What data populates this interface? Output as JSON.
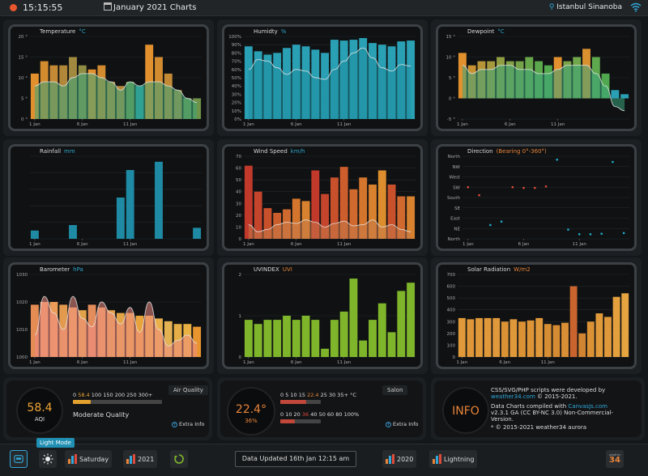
{
  "header": {
    "time": "15:15:55",
    "title": "January 2021 Charts",
    "location": "Istanbul Sinanoba"
  },
  "panels": [
    {
      "title": "Temperature",
      "unit": "°C",
      "unit_color": "blue",
      "yticks": [
        "20 °",
        "15 °",
        "10 °",
        "5 °",
        "0 °"
      ],
      "ymax": 20,
      "xticks": [
        {
          "label": "1 Jan",
          "i": 0
        },
        {
          "label": "6 Jan",
          "i": 5
        },
        {
          "label": "11 Jan",
          "i": 10
        }
      ],
      "bars": [
        11,
        14,
        13,
        13,
        15,
        13,
        12,
        13,
        9,
        8,
        9,
        8,
        18,
        15,
        11,
        7,
        5,
        5
      ],
      "bar_colors": [
        "#e2902e",
        "#d38b2f",
        "#c38935",
        "#b1873a",
        "#a18940",
        "#8f8c43",
        "#e2902e",
        "#d38b2f",
        "#c38935",
        "#b1873a",
        "#6f9348",
        "#1f9ab2",
        "#e2902e",
        "#d38b2f",
        "#c38935",
        "#b1873a",
        "#6f9348",
        "#6f9348"
      ],
      "line": [
        8,
        9,
        9,
        8,
        10,
        11,
        11,
        10,
        9,
        7,
        9,
        8,
        9,
        9,
        8,
        7,
        5,
        4
      ],
      "line_fill": "#3ca67b"
    },
    {
      "title": "Humidty",
      "unit": "%",
      "unit_color": "blue",
      "yticks": [
        "100%",
        "90%",
        "80%",
        "70%",
        "60%",
        "50%",
        "40%",
        "30%",
        "20%",
        "10%",
        "0%"
      ],
      "ymax": 100,
      "xticks": [
        {
          "label": "1 Jan",
          "i": 0
        },
        {
          "label": "6 Jan",
          "i": 5
        },
        {
          "label": "11 Jan",
          "i": 10
        }
      ],
      "bars": [
        88,
        82,
        78,
        80,
        86,
        90,
        88,
        84,
        80,
        96,
        95,
        96,
        98,
        92,
        90,
        88,
        94,
        95
      ],
      "bar_colors": [
        "#2aa0b4"
      ],
      "line": [
        60,
        72,
        70,
        62,
        54,
        60,
        58,
        50,
        48,
        60,
        70,
        80,
        86,
        74,
        62,
        58,
        66,
        64
      ],
      "line_fill": "#1e8fa0"
    },
    {
      "title": "Dewpoint",
      "unit": "°C",
      "unit_color": "blue",
      "yticks": [
        "15 °",
        "10 °",
        "5 °",
        "0 °",
        "-5 °"
      ],
      "ymax": 15,
      "ymin": -5,
      "xticks": [
        {
          "label": "1 Jan",
          "i": 0
        },
        {
          "label": "6 Jan",
          "i": 5
        },
        {
          "label": "11 Jan",
          "i": 10
        }
      ],
      "bars": [
        11,
        8,
        9,
        9,
        10,
        9,
        9,
        10,
        9,
        8,
        10,
        9,
        10,
        12,
        10,
        6,
        2,
        1
      ],
      "bar_colors": [
        "#e2902e",
        "#c89132",
        "#b59538",
        "#a5993d",
        "#909d42",
        "#82a046",
        "#74a349",
        "#68a64b",
        "#5ca84c",
        "#53a94e",
        "#e2902e",
        "#7ba347",
        "#6fa74a",
        "#d9902f",
        "#5ea94e",
        "#4fa84f",
        "#2aa0b4",
        "#2aa0b4"
      ],
      "line": [
        8,
        6,
        7,
        7,
        8,
        8,
        7,
        7,
        6,
        6,
        7,
        8,
        8,
        8,
        6,
        3,
        -2,
        -3
      ],
      "line_fill": "#3ca67b"
    },
    {
      "title": "Rainfall",
      "unit": "mm",
      "unit_color": "blue",
      "yticks": [],
      "ymax": 30,
      "xticks": [
        {
          "label": "1 Jan",
          "i": 0
        },
        {
          "label": "6 Jan",
          "i": 5
        },
        {
          "label": "11 Jan",
          "i": 10
        }
      ],
      "bars": [
        3,
        0,
        0,
        0,
        5,
        0,
        0,
        0,
        0,
        15,
        25,
        0,
        0,
        28,
        0,
        0,
        0,
        4
      ],
      "bar_colors": [
        "#1f8aa3"
      ],
      "line": []
    },
    {
      "title": "Wind Speed",
      "unit": "km/h",
      "unit_color": "blue",
      "yticks": [
        "70",
        "60",
        "50",
        "40",
        "30",
        "20",
        "10",
        "0"
      ],
      "ymax": 70,
      "xticks": [
        {
          "label": "1 Jan",
          "i": 0
        },
        {
          "label": "6 Jan",
          "i": 5
        },
        {
          "label": "11 Jan",
          "i": 10
        }
      ],
      "bars": [
        62,
        40,
        26,
        22,
        25,
        34,
        32,
        58,
        38,
        52,
        61,
        42,
        52,
        46,
        58,
        46,
        36,
        36
      ],
      "bar_colors": [
        "#c0392b",
        "#c4452b",
        "#c8512c",
        "#cc5d2c",
        "#d0692d",
        "#d4752d",
        "#d8812e",
        "#c0392b",
        "#c4452b",
        "#c8512c",
        "#cc5d2c",
        "#d0692d",
        "#d4752d",
        "#d8812e",
        "#dc8d2e",
        "#c8512c",
        "#d0692d",
        "#d8812e"
      ],
      "line": [
        12,
        6,
        8,
        12,
        14,
        13,
        16,
        14,
        10,
        13,
        15,
        11,
        12,
        16,
        10,
        12,
        8,
        6
      ],
      "line_fill": "#c87a4b"
    },
    {
      "title": "Direction",
      "unit": "(Bearing 0°-360°)",
      "unit_color": "orange",
      "yticks": [
        "North",
        "NW",
        "West",
        "SW",
        "South",
        "SE",
        "East",
        "NE",
        "North"
      ],
      "xticks": [
        {
          "label": "1 Jan",
          "i": 0
        },
        {
          "label": "6 Jan",
          "i": 5
        },
        {
          "label": "11 Jan",
          "i": 10
        }
      ],
      "points": [
        [
          0,
          225,
          "#e04a3a"
        ],
        [
          1,
          190,
          "#e04a3a"
        ],
        [
          2,
          60,
          "#1fa9c3"
        ],
        [
          3,
          75,
          "#1fa9c3"
        ],
        [
          4,
          225,
          "#e04a3a"
        ],
        [
          5,
          222,
          "#e04a3a"
        ],
        [
          6,
          222,
          "#e04a3a"
        ],
        [
          7,
          228,
          "#e04a3a"
        ],
        [
          8,
          345,
          "#1fa9c3"
        ],
        [
          9,
          40,
          "#1fa9c3"
        ],
        [
          10,
          20,
          "#1fa9c3"
        ],
        [
          11,
          20,
          "#1fa9c3"
        ],
        [
          12,
          22,
          "#1fa9c3"
        ],
        [
          13,
          335,
          "#1fa9c3"
        ],
        [
          14,
          25,
          "#1fa9c3"
        ]
      ]
    },
    {
      "title": "Barometer",
      "unit": "hPa",
      "unit_color": "blue",
      "yticks": [
        "1030",
        "1020",
        "1010",
        "1000"
      ],
      "ymax": 1030,
      "ymin": 1000,
      "xticks": [
        {
          "label": "1 Jan",
          "i": 0
        },
        {
          "label": "6 Jan",
          "i": 5
        },
        {
          "label": "11 Jan",
          "i": 10
        }
      ],
      "bars": [
        1019,
        1020,
        1020,
        1019,
        1018,
        1017,
        1019,
        1018,
        1017,
        1016,
        1016,
        1015,
        1015,
        1014,
        1013,
        1012,
        1012,
        1011
      ],
      "bar_colors": [
        "#e58b54",
        "#e8975d",
        "#eb9c58",
        "#e29a4e",
        "#e6a353",
        "#e2a24a",
        "#e48d5c",
        "#e49755",
        "#e29f4c",
        "#e2a446",
        "#e4a342",
        "#e8a33c",
        "#e6a940",
        "#eab04b",
        "#e4b153",
        "#e6ae46",
        "#e9b144",
        "#e8952f"
      ],
      "line": [
        1008,
        1022,
        1016,
        1010,
        1022,
        1014,
        1011,
        1020,
        1016,
        1012,
        1018,
        1009,
        1020,
        1010,
        1004,
        1006,
        1008,
        1005
      ],
      "line_fill": "#ef8d84"
    },
    {
      "title": "UVINDEX",
      "unit": "UVI",
      "unit_color": "orange",
      "yticks": [
        "2",
        "1",
        "0"
      ],
      "ymax": 2,
      "xticks": [
        {
          "label": "1 Jan",
          "i": 0
        },
        {
          "label": "6 Jan",
          "i": 5
        },
        {
          "label": "11 Jan",
          "i": 10
        }
      ],
      "bars": [
        0.9,
        0.8,
        0.9,
        0.9,
        1.0,
        0.9,
        1.0,
        0.9,
        0.2,
        0.9,
        1.1,
        1.9,
        0.4,
        0.9,
        1.3,
        0.6,
        1.6,
        1.8
      ],
      "bar_colors": [
        "#7fb52b"
      ],
      "line": []
    },
    {
      "title": "Solar Radiation",
      "unit": "W/m2",
      "unit_color": "orange",
      "yticks": [
        "700",
        "600",
        "500",
        "400",
        "300",
        "200",
        "100",
        "0"
      ],
      "ymax": 700,
      "xticks": [
        {
          "label": "1 Jan",
          "i": 0
        },
        {
          "label": "6 Jan",
          "i": 5
        },
        {
          "label": "11 Jan",
          "i": 10
        }
      ],
      "bars": [
        330,
        320,
        330,
        330,
        330,
        300,
        320,
        300,
        310,
        330,
        280,
        270,
        290,
        600,
        200,
        300,
        370,
        340,
        510,
        540
      ],
      "bar_colors": [
        "#e09a3a",
        "#de9638",
        "#e0993a",
        "#df983a",
        "#e0993a",
        "#db9235",
        "#df983a",
        "#db9235",
        "#dd9437",
        "#e0993a",
        "#d68d33",
        "#d48b33",
        "#d98f35",
        "#c9642f",
        "#d18431",
        "#db9235",
        "#e09a3a",
        "#df983a",
        "#e3a03d",
        "#e5a440"
      ],
      "line": []
    }
  ],
  "aqi": {
    "label": "Air Quality",
    "value": "58.4",
    "unit": "AQI",
    "scale": "0 58.4 100 150 200 250 300+",
    "scale_current": "58.4",
    "desc": "Moderate Quality",
    "extra": "Extra Info",
    "fill": 0.2
  },
  "salon": {
    "label": "Salon",
    "value": "22.4",
    "deg": "°",
    "humidity": "36",
    "hum_unit": "%",
    "temp_scale": "0 5 10 15 22.4 25 30 35+ °C",
    "temp_current": "22.4",
    "hum_scale": "0 10 20 36 40 50 60 80 100%",
    "hum_current": "36",
    "extra": "Extra Info",
    "temp_fill": 0.64,
    "hum_fill": 0.36
  },
  "info": {
    "label": "INFO",
    "line1": "CSS/SVG/PHP scripts were developed by",
    "line2_link": "weather34.com",
    "line2_rest": " © 2015-2021.",
    "line3": "Data Charts compiled with ",
    "line3_link": "CanvasJs.com",
    "line4": "v2.3.1 GA (CC BY-NC 3.0) Non-Commercial-",
    "line5": "Version.",
    "line6": "* © 2015-2021 weather34 aurora"
  },
  "footer": {
    "lightmode": "Light Mode",
    "saturday": "Saturday",
    "y2021": "2021",
    "updated": "Data Updated 16th Jan 12:15 am",
    "y2020": "2020",
    "lightning": "Lightning",
    "logo_top": "weather",
    "logo_num": "34"
  }
}
